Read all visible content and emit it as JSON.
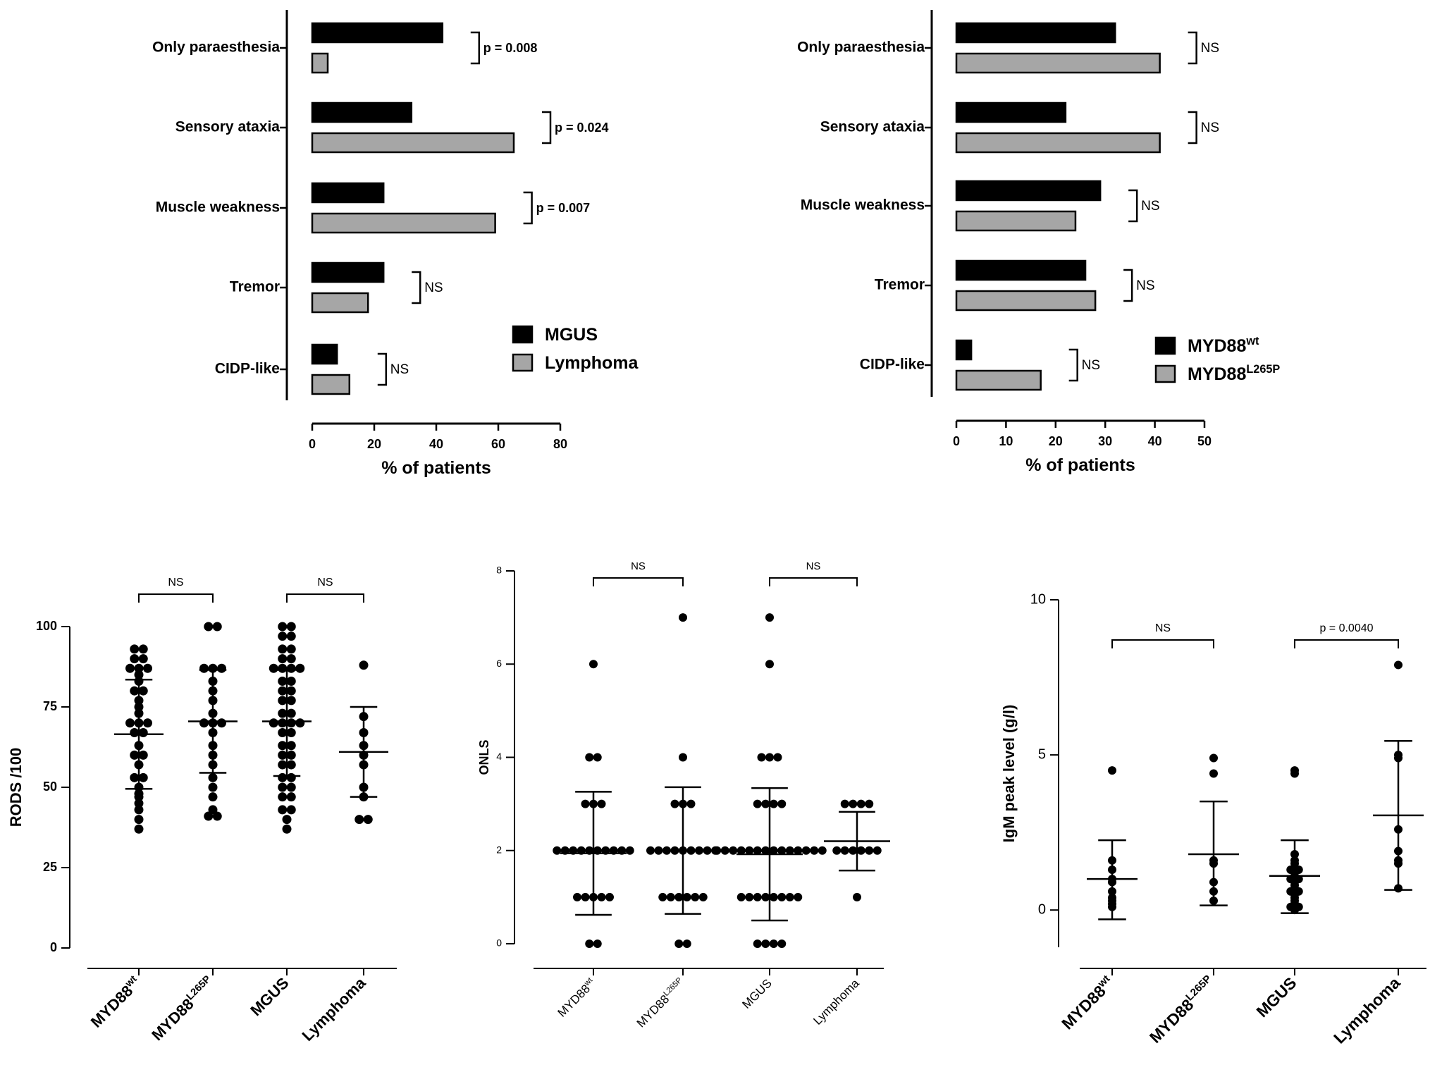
{
  "chart_data": [
    {
      "type": "bar",
      "orientation": "horizontal",
      "categories": [
        "Only paraesthesia",
        "Sensory ataxia",
        "Muscle weakness",
        "Tremor",
        "CIDP-like"
      ],
      "series": [
        {
          "name": "MGUS",
          "color": "#000000",
          "values": [
            42,
            32,
            23,
            23,
            8
          ]
        },
        {
          "name": "Lymphoma",
          "color": "#a6a6a6",
          "values": [
            5,
            65,
            59,
            18,
            12
          ]
        }
      ],
      "significance": [
        "p = 0.008",
        "p = 0.024",
        "p = 0.007",
        "NS",
        "NS"
      ],
      "xlabel": "% of patients",
      "xlim": [
        0,
        80
      ],
      "xticks": [
        "0",
        "20",
        "40",
        "60",
        "80"
      ],
      "legend_position": "bottom-right"
    },
    {
      "type": "bar",
      "orientation": "horizontal",
      "categories": [
        "Only paraesthesia",
        "Sensory ataxia",
        "Muscle weakness",
        "Tremor",
        "CIDP-like"
      ],
      "series": [
        {
          "name": "MYD88",
          "name_superscript": "wt",
          "color": "#000000",
          "values": [
            32,
            22,
            29,
            26,
            3
          ]
        },
        {
          "name": "MYD88",
          "name_superscript": "L265P",
          "color": "#a6a6a6",
          "values": [
            41,
            41,
            24,
            28,
            17
          ]
        }
      ],
      "significance": [
        "NS",
        "NS",
        "NS",
        "NS",
        "NS"
      ],
      "xlabel": "% of patients",
      "xlim": [
        0,
        50
      ],
      "xticks": [
        "0",
        "10",
        "20",
        "30",
        "40",
        "50"
      ],
      "legend_position": "bottom-right"
    },
    {
      "type": "scatter",
      "ylabel": "RODS /100",
      "ylim": [
        0,
        100
      ],
      "yticks": [
        "0",
        "25",
        "50",
        "75",
        "100"
      ],
      "groups": [
        {
          "name": "MYD88",
          "name_superscript": "wt",
          "mean": 66.5,
          "sd_low": 49.5,
          "sd_high": 83.5,
          "values": [
            93,
            93,
            90,
            90,
            87,
            87,
            87,
            85,
            83,
            80,
            80,
            77,
            75,
            73,
            70,
            70,
            70,
            67,
            67,
            63,
            60,
            60,
            57,
            53,
            53,
            50,
            48,
            47,
            45,
            43,
            40,
            37
          ]
        },
        {
          "name": "MYD88",
          "name_superscript": "L265P",
          "mean": 70.5,
          "sd_low": 54.5,
          "sd_high": 86.5,
          "values": [
            100,
            100,
            87,
            87,
            87,
            83,
            80,
            77,
            73,
            70,
            70,
            70,
            67,
            63,
            60,
            57,
            53,
            50,
            47,
            43,
            41,
            41
          ]
        },
        {
          "name": "MGUS",
          "mean": 70.5,
          "sd_low": 53.5,
          "sd_high": 86.5,
          "values": [
            100,
            100,
            97,
            97,
            93,
            93,
            90,
            90,
            87,
            87,
            87,
            87,
            83,
            83,
            80,
            80,
            77,
            77,
            73,
            73,
            70,
            70,
            70,
            70,
            67,
            67,
            63,
            63,
            60,
            60,
            57,
            57,
            53,
            53,
            50,
            50,
            47,
            47,
            43,
            43,
            40,
            37
          ]
        },
        {
          "name": "Lymphoma",
          "mean": 61,
          "sd_low": 47,
          "sd_high": 75,
          "values": [
            88,
            72,
            67,
            63,
            60,
            57,
            50,
            47,
            40,
            40
          ]
        }
      ],
      "comparisons": [
        {
          "groups": [
            0,
            1
          ],
          "label": "NS"
        },
        {
          "groups": [
            2,
            3
          ],
          "label": "NS"
        }
      ]
    },
    {
      "type": "scatter",
      "ylabel": "ONLS",
      "ylim": [
        0,
        8
      ],
      "yticks": [
        "0",
        "2",
        "4",
        "6",
        "8"
      ],
      "groups": [
        {
          "name": "MYD88",
          "name_superscript": "wt",
          "mean": 1.94,
          "sd_low": 0.62,
          "sd_high": 3.26,
          "values": [
            6,
            4,
            4,
            3,
            3,
            3,
            2,
            2,
            2,
            2,
            2,
            2,
            2,
            2,
            2,
            2,
            1,
            1,
            1,
            1,
            1,
            0,
            0
          ]
        },
        {
          "name": "MYD88",
          "name_superscript": "L265P",
          "mean": 2,
          "sd_low": 0.64,
          "sd_high": 3.36,
          "values": [
            7,
            4,
            3,
            3,
            3,
            2,
            2,
            2,
            2,
            2,
            2,
            2,
            2,
            2,
            1,
            1,
            1,
            1,
            1,
            1,
            0,
            0
          ]
        },
        {
          "name": "MGUS",
          "mean": 1.92,
          "sd_low": 0.5,
          "sd_high": 3.34,
          "values": [
            7,
            6,
            4,
            4,
            4,
            3,
            3,
            3,
            3,
            2,
            2,
            2,
            2,
            2,
            2,
            2,
            2,
            2,
            2,
            2,
            2,
            2,
            2,
            1,
            1,
            1,
            1,
            1,
            1,
            1,
            1,
            0,
            0,
            0,
            0
          ]
        },
        {
          "name": "Lymphoma",
          "mean": 2.2,
          "sd_low": 1.57,
          "sd_high": 2.83,
          "values": [
            3,
            3,
            3,
            3,
            2,
            2,
            2,
            2,
            2,
            2,
            1
          ]
        }
      ],
      "comparisons": [
        {
          "groups": [
            0,
            1
          ],
          "label": "NS"
        },
        {
          "groups": [
            2,
            3
          ],
          "label": "NS"
        }
      ]
    },
    {
      "type": "scatter",
      "ylabel": "IgM peak level (g/l)",
      "ylim": [
        -1.2,
        10
      ],
      "yticks": [
        "0",
        "5",
        "10"
      ],
      "groups": [
        {
          "name": "MYD88",
          "name_superscript": "wt",
          "mean": 1.0,
          "sd_low": -0.3,
          "sd_high": 2.25,
          "values": [
            4.5,
            1.6,
            1.3,
            1.0,
            0.9,
            0.6,
            0.4,
            0.3,
            0.2,
            0.1
          ]
        },
        {
          "name": "MYD88",
          "name_superscript": "L265P",
          "mean": 1.8,
          "sd_low": 0.15,
          "sd_high": 3.5,
          "values": [
            4.9,
            4.4,
            1.6,
            1.5,
            0.9,
            0.6,
            0.3
          ]
        },
        {
          "name": "MGUS",
          "mean": 1.1,
          "sd_low": -0.1,
          "sd_high": 2.25,
          "values": [
            4.5,
            4.4,
            1.8,
            1.6,
            1.5,
            1.3,
            1.3,
            1.2,
            1.0,
            1.0,
            0.9,
            0.8,
            0.7,
            0.6,
            0.6,
            0.5,
            0.4,
            0.3,
            0.2,
            0.1,
            0.1,
            0.0
          ]
        },
        {
          "name": "Lymphoma",
          "mean": 3.05,
          "sd_low": 0.65,
          "sd_high": 5.45,
          "values": [
            7.9,
            5.0,
            4.9,
            2.6,
            1.9,
            1.6,
            1.5,
            0.7
          ]
        }
      ],
      "comparisons": [
        {
          "groups": [
            0,
            1
          ],
          "label": "NS"
        },
        {
          "groups": [
            2,
            3
          ],
          "label": "p = 0.0040"
        }
      ]
    }
  ]
}
